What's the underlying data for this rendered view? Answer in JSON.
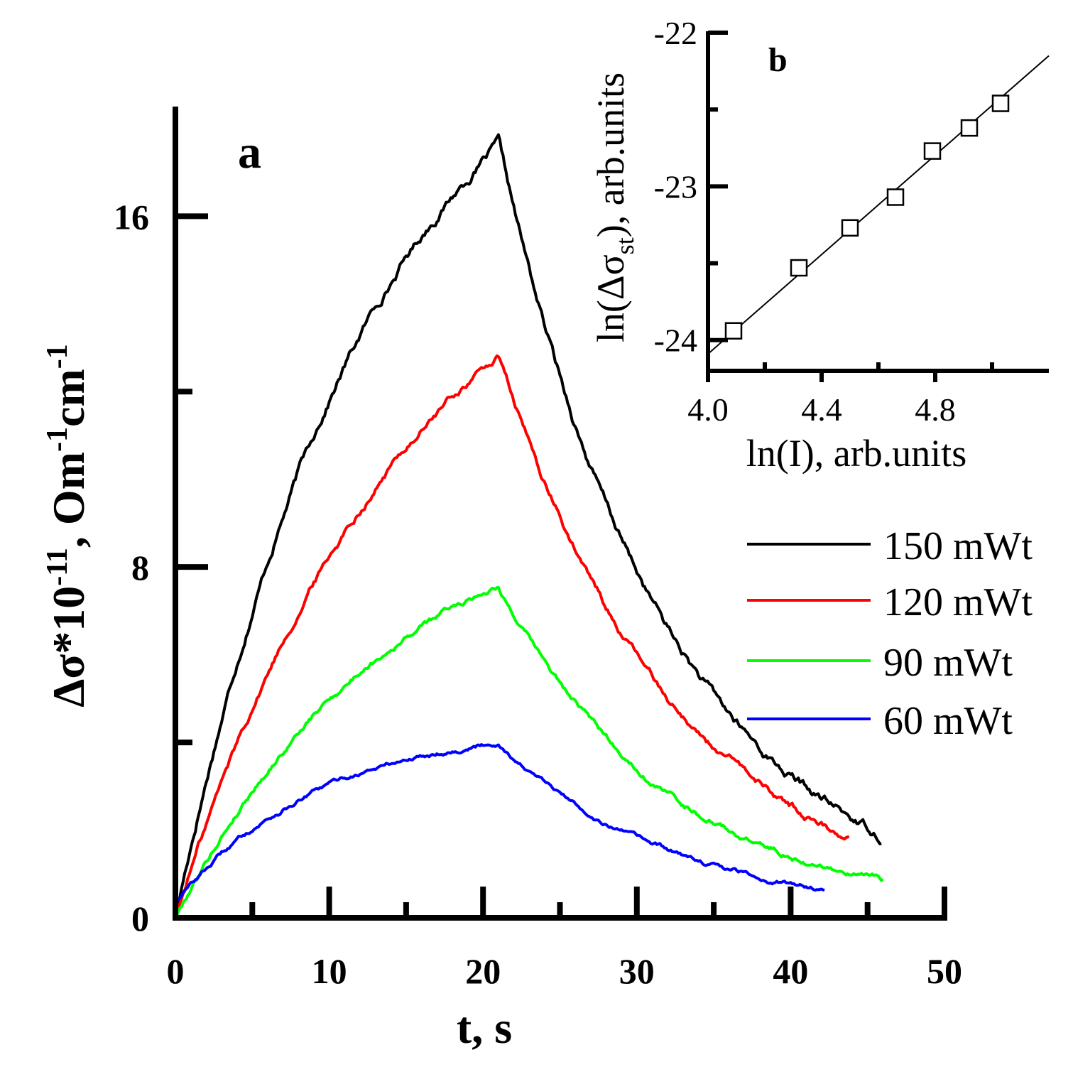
{
  "chart_data": [
    {
      "id": "main",
      "type": "line",
      "panel_label": "a",
      "xlabel": "t, s",
      "ylabel": {
        "main": "Δσ*10",
        "exp1": "-11",
        "mid": ", Om",
        "exp2": "-1",
        "cm": "cm",
        "exp3": "-1"
      },
      "xlim": [
        0,
        50
      ],
      "ylim": [
        0,
        18.5
      ],
      "xticks": [
        0,
        10,
        20,
        30,
        40,
        50
      ],
      "xticks_minor": [
        5,
        15,
        25,
        35,
        45
      ],
      "yticks": [
        0,
        8,
        16
      ],
      "yticks_minor": [
        4,
        12
      ],
      "series": [
        {
          "name": "150 mWt",
          "color": "#000000",
          "amp": 17.6,
          "peak_t": 21.0,
          "tau_rise": 12.8,
          "tau_decay": 11.2,
          "t_end": 45.9,
          "points": [
            [
              0,
              0
            ],
            [
              1,
              1.3
            ],
            [
              2,
              2.8
            ],
            [
              3,
              4.3
            ],
            [
              4,
              5.7
            ],
            [
              5,
              7.0
            ],
            [
              6,
              8.1
            ],
            [
              7,
              9.2
            ],
            [
              8,
              10.1
            ],
            [
              9,
              11.0
            ],
            [
              10,
              11.8
            ],
            [
              11,
              12.4
            ],
            [
              12,
              13.0
            ],
            [
              13,
              13.7
            ],
            [
              14,
              14.2
            ],
            [
              15,
              14.7
            ],
            [
              16,
              15.2
            ],
            [
              17,
              15.7
            ],
            [
              18,
              16.1
            ],
            [
              19,
              16.4
            ],
            [
              20,
              16.7
            ],
            [
              21,
              17.6
            ],
            [
              22,
              16.8
            ],
            [
              23,
              15.7
            ],
            [
              24,
              14.5
            ],
            [
              25,
              13.3
            ],
            [
              26,
              12.2
            ],
            [
              27,
              11.1
            ],
            [
              28,
              10.0
            ],
            [
              29,
              9.0
            ],
            [
              30,
              8.1
            ],
            [
              31,
              7.3
            ],
            [
              32,
              6.6
            ],
            [
              33,
              5.9
            ],
            [
              34,
              5.3
            ],
            [
              35,
              4.7
            ],
            [
              36,
              4.2
            ],
            [
              37,
              3.8
            ],
            [
              38,
              3.4
            ],
            [
              39,
              3.0
            ],
            [
              40,
              2.7
            ],
            [
              41,
              2.4
            ],
            [
              42,
              2.1
            ],
            [
              43,
              1.8
            ],
            [
              44,
              1.6
            ],
            [
              45,
              1.4
            ],
            [
              45.9,
              1.2
            ]
          ]
        },
        {
          "name": "120 mWt",
          "color": "#ff0000",
          "amp": 12.8,
          "peak_t": 21.0,
          "tau_rise": 15.0,
          "tau_decay": 11.8,
          "t_end": 43.8,
          "points": [
            [
              0,
              0
            ],
            [
              1,
              1.0
            ],
            [
              2,
              2.0
            ],
            [
              3,
              3.0
            ],
            [
              4,
              3.9
            ],
            [
              5,
              4.8
            ],
            [
              6,
              5.6
            ],
            [
              7,
              6.3
            ],
            [
              8,
              7.0
            ],
            [
              9,
              7.6
            ],
            [
              10,
              8.2
            ],
            [
              11,
              8.7
            ],
            [
              12,
              9.2
            ],
            [
              13,
              9.7
            ],
            [
              14,
              10.1
            ],
            [
              15,
              10.6
            ],
            [
              16,
              11.0
            ],
            [
              17,
              11.4
            ],
            [
              18,
              11.7
            ],
            [
              19,
              12.0
            ],
            [
              20,
              12.3
            ],
            [
              21,
              12.8
            ],
            [
              22,
              12.0
            ],
            [
              23,
              11.1
            ],
            [
              24,
              10.3
            ],
            [
              25,
              9.5
            ],
            [
              26,
              8.7
            ],
            [
              27,
              8.0
            ],
            [
              28,
              7.3
            ],
            [
              29,
              6.7
            ],
            [
              30,
              6.1
            ],
            [
              31,
              5.5
            ],
            [
              32,
              5.0
            ],
            [
              33,
              4.5
            ],
            [
              34,
              4.1
            ],
            [
              35,
              3.7
            ],
            [
              36,
              3.3
            ],
            [
              37,
              3.0
            ],
            [
              38,
              2.7
            ],
            [
              39,
              2.4
            ],
            [
              40,
              2.2
            ],
            [
              41,
              1.9
            ],
            [
              42,
              1.7
            ],
            [
              43,
              1.5
            ],
            [
              43.8,
              1.3
            ]
          ]
        },
        {
          "name": "90 mWt",
          "color": "#00ff00",
          "amp": 7.6,
          "peak_t": 21.0,
          "tau_rise": 14.2,
          "tau_decay": 11.3,
          "t_end": 46.0,
          "points": [
            [
              0,
              0
            ],
            [
              1,
              0.7
            ],
            [
              2,
              1.3
            ],
            [
              3,
              1.9
            ],
            [
              4,
              2.4
            ],
            [
              5,
              2.9
            ],
            [
              6,
              3.4
            ],
            [
              7,
              3.8
            ],
            [
              8,
              4.2
            ],
            [
              9,
              4.6
            ],
            [
              10,
              4.9
            ],
            [
              11,
              5.2
            ],
            [
              12,
              5.5
            ],
            [
              13,
              5.8
            ],
            [
              14,
              6.1
            ],
            [
              15,
              6.4
            ],
            [
              16,
              6.7
            ],
            [
              17,
              6.9
            ],
            [
              18,
              7.1
            ],
            [
              19,
              7.3
            ],
            [
              20,
              7.4
            ],
            [
              21,
              7.6
            ],
            [
              22,
              7.1
            ],
            [
              23,
              6.6
            ],
            [
              24,
              6.1
            ],
            [
              25,
              5.6
            ],
            [
              26,
              5.2
            ],
            [
              27,
              4.7
            ],
            [
              28,
              4.3
            ],
            [
              29,
              3.9
            ],
            [
              30,
              3.6
            ],
            [
              31,
              3.3
            ],
            [
              32,
              3.0
            ],
            [
              33,
              2.7
            ],
            [
              34,
              2.5
            ],
            [
              35,
              2.3
            ],
            [
              36,
              2.1
            ],
            [
              37,
              1.9
            ],
            [
              38,
              1.7
            ],
            [
              39,
              1.6
            ],
            [
              40,
              1.4
            ],
            [
              41,
              1.3
            ],
            [
              42,
              1.2
            ],
            [
              43,
              1.1
            ],
            [
              44,
              1.0
            ],
            [
              45,
              0.9
            ],
            [
              46,
              0.8
            ]
          ]
        },
        {
          "name": "60 mWt",
          "color": "#0000ff",
          "amp": 4.0,
          "peak_t": 21.0,
          "tau_rise": 9.5,
          "tau_decay": 10.5,
          "t_end": 42.2,
          "offset": 0.35,
          "points": [
            [
              0,
              0.35
            ],
            [
              1,
              0.7
            ],
            [
              2,
              1.0
            ],
            [
              3,
              1.3
            ],
            [
              4,
              1.5
            ],
            [
              5,
              1.8
            ],
            [
              6,
              2.0
            ],
            [
              7,
              2.2
            ],
            [
              8,
              2.4
            ],
            [
              9,
              2.6
            ],
            [
              10,
              2.7
            ],
            [
              11,
              2.9
            ],
            [
              12,
              3.0
            ],
            [
              13,
              3.2
            ],
            [
              14,
              3.3
            ],
            [
              15,
              3.4
            ],
            [
              16,
              3.5
            ],
            [
              17,
              3.6
            ],
            [
              18,
              3.7
            ],
            [
              19,
              3.9
            ],
            [
              20,
              4.0
            ],
            [
              21,
              4.0
            ],
            [
              22,
              3.7
            ],
            [
              23,
              3.4
            ],
            [
              24,
              3.2
            ],
            [
              25,
              2.9
            ],
            [
              26,
              2.7
            ],
            [
              27,
              2.5
            ],
            [
              28,
              2.3
            ],
            [
              29,
              2.1
            ],
            [
              30,
              1.9
            ],
            [
              31,
              1.7
            ],
            [
              32,
              1.6
            ],
            [
              33,
              1.5
            ],
            [
              34,
              1.3
            ],
            [
              35,
              1.2
            ],
            [
              36,
              1.1
            ],
            [
              37,
              1.0
            ],
            [
              38,
              0.9
            ],
            [
              39,
              0.8
            ],
            [
              40,
              0.7
            ],
            [
              41,
              0.6
            ],
            [
              42.2,
              0.55
            ]
          ]
        }
      ],
      "legend": {
        "position": "right-middle",
        "entries": [
          "150 mWt",
          "120 mWt",
          "90 mWt",
          "60 mWt"
        ]
      }
    },
    {
      "id": "inset",
      "type": "scatter",
      "panel_label": "b",
      "xlabel": "ln(I), arb.units",
      "ylabel": {
        "pre": "ln(Δσ",
        "sub": "st",
        "post": "), arb.units"
      },
      "xlim": [
        4.0,
        5.2
      ],
      "ylim": [
        -24.2,
        -22.0
      ],
      "xticks": [
        4.0,
        4.4,
        4.8
      ],
      "xtick_labels": [
        "4.0",
        "4.4",
        "4.8"
      ],
      "xticks_minor": [
        4.2,
        4.6,
        5.0
      ],
      "yticks": [
        -24,
        -23,
        -22
      ],
      "ytick_labels": [
        "-24",
        "-23",
        "-22"
      ],
      "yticks_minor": [
        -23.5,
        -22.5
      ],
      "points": [
        [
          4.09,
          -23.94
        ],
        [
          4.32,
          -23.53
        ],
        [
          4.5,
          -23.27
        ],
        [
          4.66,
          -23.07
        ],
        [
          4.79,
          -22.77
        ],
        [
          4.92,
          -22.62
        ],
        [
          5.03,
          -22.46
        ]
      ],
      "fit_line": {
        "x": [
          4.0,
          5.2
        ],
        "y": [
          -24.09,
          -22.15
        ]
      }
    }
  ]
}
